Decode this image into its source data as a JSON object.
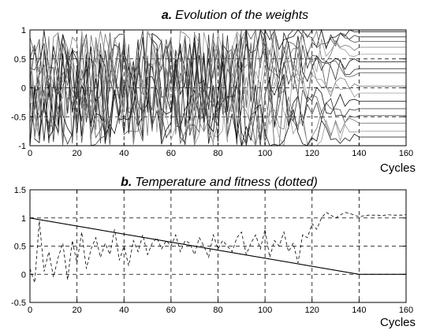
{
  "chart_data": [
    {
      "type": "line",
      "title_prefix": "a.",
      "title": "Evolution of the weights",
      "xlabel": "Cycles",
      "ylabel": "",
      "xlim": [
        0,
        160
      ],
      "ylim": [
        -1,
        1
      ],
      "xticks": [
        0,
        20,
        40,
        60,
        80,
        100,
        120,
        140,
        160
      ],
      "yticks": [
        -1,
        -0.5,
        0,
        0.5,
        1
      ],
      "grid": true,
      "line_colors": [
        "#111111",
        "#333333",
        "#555555",
        "#777777",
        "#999999"
      ],
      "series_count": 16,
      "converged_values": [
        0.97,
        0.88,
        0.8,
        0.7,
        0.58,
        0.45,
        0.33,
        0.26,
        0.03,
        -0.09,
        -0.23,
        -0.36,
        -0.48,
        -0.61,
        -0.75,
        -0.85
      ]
    },
    {
      "type": "line",
      "title_prefix": "b.",
      "title": "Temperature and fitness (dotted)",
      "xlabel": "Cycles",
      "ylabel": "",
      "xlim": [
        0,
        160
      ],
      "ylim": [
        -0.5,
        1.5
      ],
      "xticks": [
        0,
        20,
        40,
        60,
        80,
        100,
        120,
        140,
        160
      ],
      "yticks": [
        -0.5,
        0,
        0.5,
        1,
        1.5
      ],
      "grid": true,
      "series": [
        {
          "style": "solid",
          "x": [
            0,
            140,
            160
          ],
          "y": [
            1.0,
            0.0,
            0.0
          ]
        },
        {
          "style": "dotted",
          "x": [
            0,
            2,
            4,
            6,
            8,
            10,
            12,
            14,
            16,
            18,
            20,
            22,
            24,
            26,
            28,
            30,
            32,
            34,
            36,
            38,
            40,
            42,
            44,
            46,
            48,
            50,
            52,
            54,
            56,
            58,
            60,
            62,
            64,
            66,
            68,
            70,
            72,
            74,
            76,
            78,
            80,
            82,
            84,
            86,
            88,
            90,
            92,
            94,
            96,
            98,
            100,
            102,
            104,
            106,
            108,
            110,
            112,
            114,
            116,
            118,
            120,
            122,
            124,
            126,
            128,
            130,
            132,
            134,
            136,
            138,
            140,
            142,
            144,
            146,
            148,
            150,
            152,
            154,
            156,
            158,
            160
          ],
          "y": [
            0.1,
            -0.15,
            0.95,
            0.05,
            0.4,
            -0.05,
            0.3,
            0.55,
            -0.1,
            0.6,
            0.2,
            0.75,
            0.1,
            0.45,
            0.65,
            0.3,
            0.55,
            0.35,
            0.8,
            0.25,
            0.5,
            0.15,
            0.6,
            0.4,
            0.7,
            0.35,
            0.55,
            0.65,
            0.45,
            0.6,
            0.5,
            0.7,
            0.4,
            0.6,
            0.55,
            0.35,
            0.65,
            0.5,
            0.3,
            0.7,
            0.45,
            0.6,
            0.5,
            0.4,
            0.65,
            0.75,
            0.35,
            0.55,
            0.7,
            0.45,
            0.8,
            0.3,
            0.6,
            0.5,
            0.75,
            0.4,
            0.55,
            0.2,
            0.7,
            0.65,
            0.9,
            0.8,
            1.0,
            1.1,
            1.05,
            1.0,
            1.05,
            1.1,
            1.08,
            1.05,
            1.02,
            1.04,
            1.05,
            1.05,
            1.05,
            1.04,
            1.06,
            1.05,
            1.05,
            1.05,
            1.06
          ]
        }
      ]
    }
  ]
}
